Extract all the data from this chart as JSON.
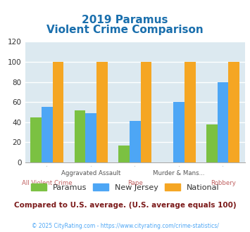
{
  "title_line1": "2019 Paramus",
  "title_line2": "Violent Crime Comparison",
  "categories": [
    "All Violent Crime",
    "Aggravated Assault",
    "Rape",
    "Murder & Mans...",
    "Robbery"
  ],
  "series": {
    "Paramus": [
      45,
      52,
      17,
      0,
      38
    ],
    "New Jersey": [
      55,
      49,
      41,
      60,
      80
    ],
    "National": [
      100,
      100,
      100,
      100,
      100
    ]
  },
  "colors": {
    "Paramus": "#7bc142",
    "New Jersey": "#4da6f5",
    "National": "#f5a623"
  },
  "ylim": [
    0,
    120
  ],
  "yticks": [
    0,
    20,
    40,
    60,
    80,
    100,
    120
  ],
  "background_color": "#dce9f0",
  "title_color": "#1a6fad",
  "subtitle_note": "Compared to U.S. average. (U.S. average equals 100)",
  "subtitle_note_color": "#7b1a1a",
  "footer": "© 2025 CityRating.com - https://www.cityrating.com/crime-statistics/",
  "footer_color": "#4da6f5",
  "grid_color": "#ffffff",
  "bar_width": 0.25,
  "top_labels": [
    [
      1,
      "Aggravated Assault"
    ],
    [
      3,
      "Murder & Mans..."
    ]
  ],
  "bottom_labels": [
    [
      0,
      "All Violent Crime"
    ],
    [
      2,
      "Rape"
    ],
    [
      4,
      "Robbery"
    ]
  ],
  "top_label_color": "#555555",
  "bottom_label_color": "#c06060"
}
